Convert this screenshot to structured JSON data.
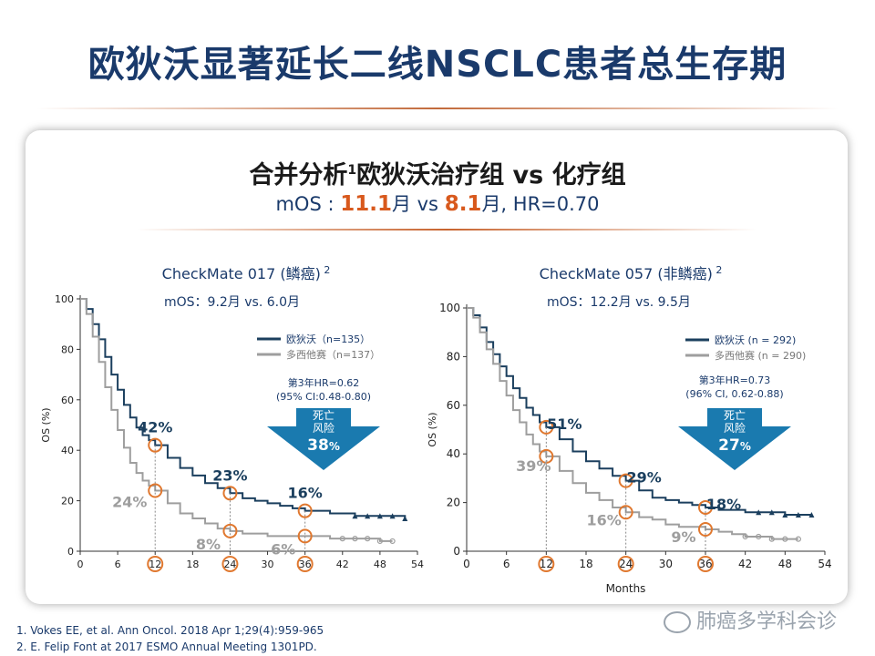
{
  "title": "欧狄沃显著延长二线NSCLC患者总生存期",
  "subtitle": {
    "line1": "合并分析",
    "line1_sup": "1",
    "line1_rest": "欧狄沃治疗组 vs 化疗组",
    "mos_prefix": "mOS : ",
    "mos_a": "11.1",
    "mos_mid": "月 vs ",
    "mos_b": "8.1",
    "mos_suffix": "月, HR=0.70"
  },
  "references": [
    "1.   Vokes EE, et al. Ann Oncol. 2018 Apr 1;29(4):959-965",
    "2.   E. Felip Font at 2017 ESMO Annual Meeting   1301PD."
  ],
  "watermark": "肺癌多学科会诊",
  "colors": {
    "nivo": "#1b3f5e",
    "chemo": "#9e9e9e",
    "circle": "#e0782f",
    "arrow": "#1a7aaf"
  },
  "chart_data": [
    {
      "type": "line",
      "study": "CheckMate 017 (鳞癌)",
      "study_sup": "2",
      "mos_text": "mOS：9.2月 vs. 6.0月",
      "ylabel": "OS (%)",
      "xlabel": "",
      "xlim": [
        0,
        54
      ],
      "ylim": [
        0,
        100
      ],
      "xticks": [
        0,
        6,
        12,
        18,
        24,
        30,
        36,
        42,
        48,
        54
      ],
      "yticks": [
        0,
        20,
        40,
        60,
        80,
        100
      ],
      "series": [
        {
          "name": "欧狄沃（n=135）",
          "x": [
            0,
            1,
            2,
            3,
            4,
            5,
            6,
            7,
            8,
            9,
            10,
            11,
            12,
            14,
            16,
            18,
            20,
            22,
            24,
            26,
            28,
            30,
            32,
            34,
            36,
            38,
            40,
            42,
            44,
            46,
            48,
            50,
            52
          ],
          "y": [
            100,
            96,
            90,
            84,
            77,
            70,
            64,
            58,
            53,
            49,
            46,
            44,
            42,
            37,
            33,
            30,
            27,
            25,
            23,
            21,
            20,
            19,
            18,
            17,
            16,
            16,
            15,
            15,
            14,
            14,
            14,
            14,
            13
          ]
        },
        {
          "name": "多西他赛（n=137）",
          "x": [
            0,
            1,
            2,
            3,
            4,
            5,
            6,
            7,
            8,
            9,
            10,
            11,
            12,
            14,
            16,
            18,
            20,
            22,
            24,
            26,
            28,
            30,
            32,
            34,
            36,
            38,
            40,
            42,
            44,
            46,
            48,
            50
          ],
          "y": [
            100,
            94,
            85,
            75,
            65,
            56,
            48,
            41,
            35,
            31,
            28,
            26,
            24,
            19,
            15,
            13,
            11,
            9,
            8,
            7,
            7,
            6,
            6,
            6,
            6,
            6,
            5,
            5,
            5,
            5,
            4,
            4
          ]
        }
      ],
      "annotations": [
        {
          "x": 12,
          "y": 42,
          "text": "42%",
          "series": "nivo"
        },
        {
          "x": 24,
          "y": 23,
          "text": "23%",
          "series": "nivo"
        },
        {
          "x": 36,
          "y": 16,
          "text": "16%",
          "series": "nivo"
        },
        {
          "x": 12,
          "y": 24,
          "text": "24%",
          "series": "chemo"
        },
        {
          "x": 24,
          "y": 8,
          "text": "8%",
          "series": "chemo"
        },
        {
          "x": 36,
          "y": 6,
          "text": "6%",
          "series": "chemo"
        }
      ],
      "hr_line1": "第3年HR=0.62",
      "hr_line2": "(95% CI:0.48-0.80)",
      "arrow_line1": "死亡",
      "arrow_line2": "风险",
      "arrow_value": "38",
      "arrow_unit": "%"
    },
    {
      "type": "line",
      "study": "CheckMate 057 (非鳞癌)",
      "study_sup": "2",
      "mos_text": "mOS：12.2月 vs. 9.5月",
      "ylabel": "OS (%)",
      "xlabel": "Months",
      "xlim": [
        0,
        54
      ],
      "ylim": [
        0,
        100
      ],
      "xticks": [
        0,
        6,
        12,
        18,
        24,
        30,
        36,
        42,
        48,
        54
      ],
      "yticks": [
        0,
        20,
        40,
        60,
        80,
        100
      ],
      "series": [
        {
          "name": "欧狄沃 (n = 292)",
          "x": [
            0,
            1,
            2,
            3,
            4,
            5,
            6,
            7,
            8,
            9,
            10,
            11,
            12,
            14,
            16,
            18,
            20,
            22,
            24,
            26,
            28,
            30,
            32,
            34,
            36,
            38,
            40,
            42,
            44,
            46,
            48,
            50,
            52
          ],
          "y": [
            100,
            97,
            92,
            86,
            81,
            76,
            72,
            67,
            63,
            59,
            56,
            53,
            51,
            46,
            41,
            37,
            34,
            31,
            29,
            25,
            22,
            21,
            20,
            19,
            18,
            17,
            17,
            16,
            16,
            16,
            15,
            15,
            15
          ]
        },
        {
          "name": "多西他赛 (n = 290)",
          "x": [
            0,
            1,
            2,
            3,
            4,
            5,
            6,
            7,
            8,
            9,
            10,
            11,
            12,
            14,
            16,
            18,
            20,
            22,
            24,
            26,
            28,
            30,
            32,
            34,
            36,
            38,
            40,
            42,
            44,
            46,
            48,
            50
          ],
          "y": [
            100,
            96,
            90,
            83,
            77,
            70,
            64,
            58,
            53,
            48,
            44,
            41,
            39,
            33,
            28,
            24,
            21,
            18,
            16,
            14,
            13,
            11,
            10,
            10,
            9,
            8,
            7,
            6,
            6,
            5,
            5,
            5
          ]
        }
      ],
      "annotations": [
        {
          "x": 12,
          "y": 51,
          "text": "51%",
          "series": "nivo"
        },
        {
          "x": 24,
          "y": 29,
          "text": "29%",
          "series": "nivo"
        },
        {
          "x": 36,
          "y": 18,
          "text": "18%",
          "series": "nivo"
        },
        {
          "x": 12,
          "y": 39,
          "text": "39%",
          "series": "chemo"
        },
        {
          "x": 24,
          "y": 16,
          "text": "16%",
          "series": "chemo"
        },
        {
          "x": 36,
          "y": 9,
          "text": "9%",
          "series": "chemo"
        }
      ],
      "hr_line1": "第3年HR=0.73",
      "hr_line2": "(96% CI, 0.62-0.88)",
      "arrow_line1": "死亡",
      "arrow_line2": "风险",
      "arrow_value": "27",
      "arrow_unit": "%"
    }
  ]
}
